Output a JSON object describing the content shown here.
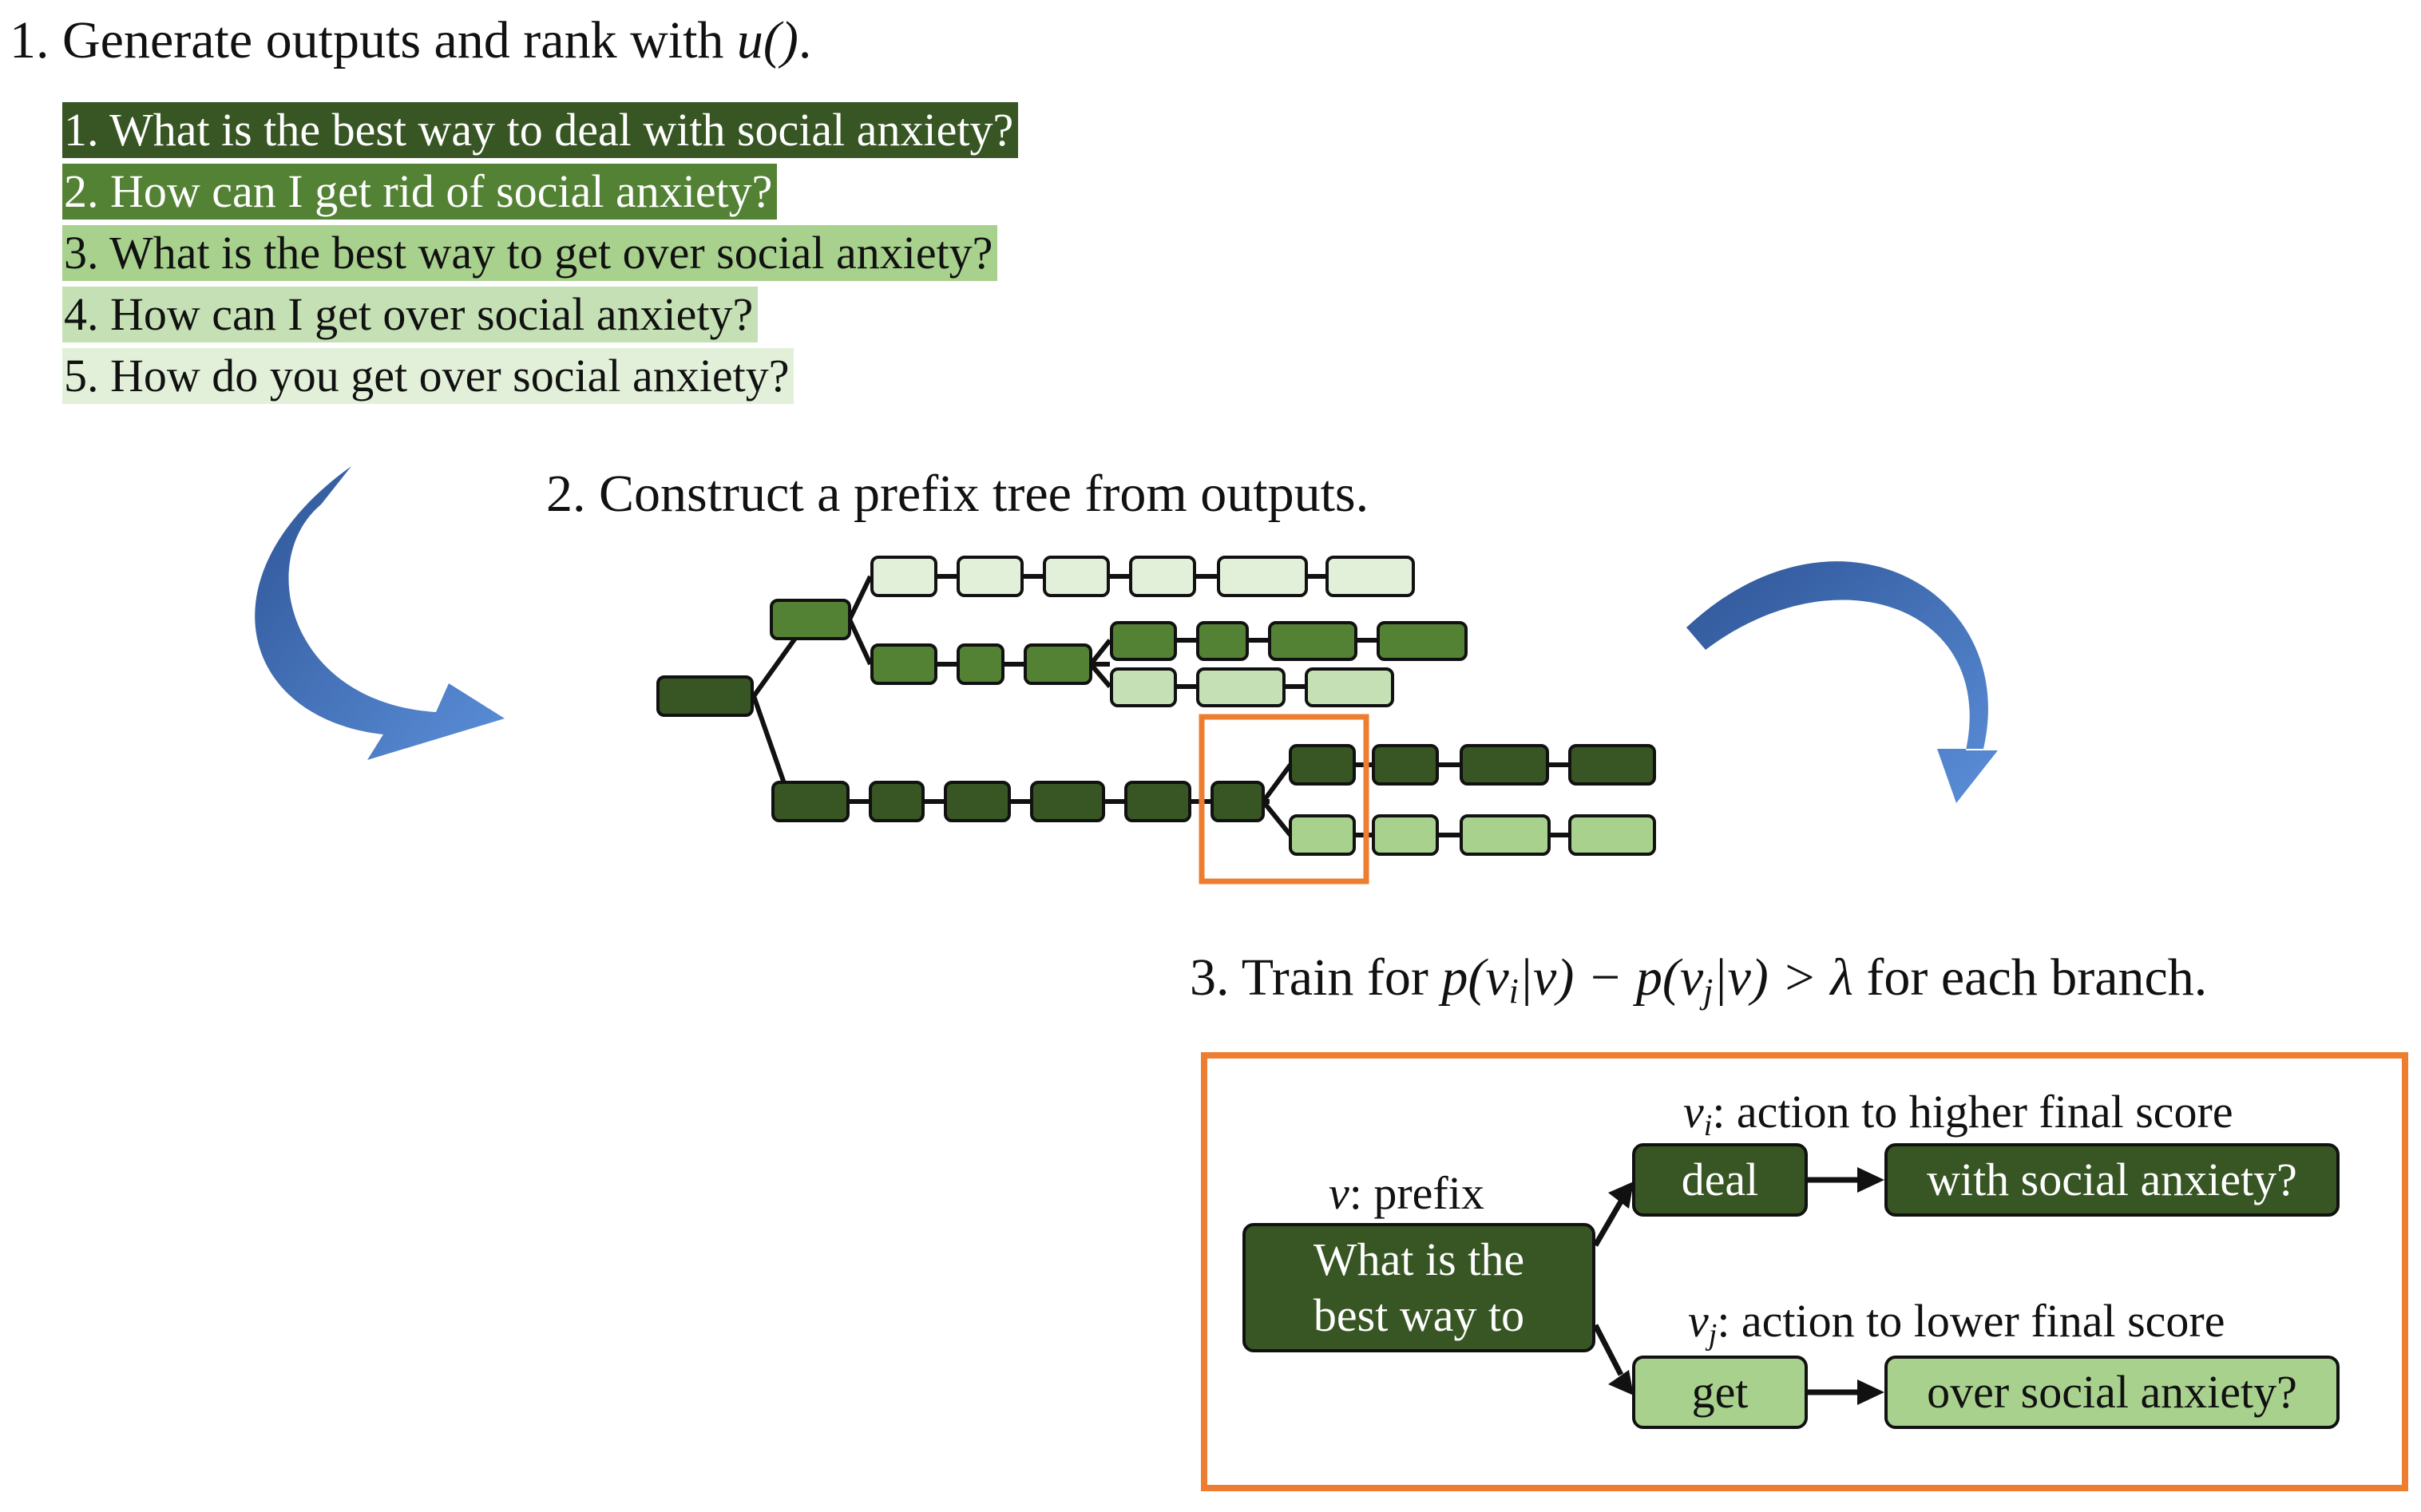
{
  "step1": {
    "prefix": "1. Generate outputs and rank with ",
    "math": "u()",
    "suffix": "."
  },
  "ranked_outputs": [
    {
      "text": "1. What is the best way to deal with social anxiety?",
      "bg": "#375623",
      "fg": "#ffffff"
    },
    {
      "text": "2. How can I get rid of social anxiety?",
      "bg": "#548235",
      "fg": "#ffffff"
    },
    {
      "text": "3. What is the best way to get over social anxiety?",
      "bg": "#a9d18e",
      "fg": "#111111"
    },
    {
      "text": "4. How can I get over social anxiety?",
      "bg": "#c5e0b4",
      "fg": "#111111"
    },
    {
      "text": "5. How do you get over social anxiety?",
      "bg": "#e2f0d9",
      "fg": "#111111"
    }
  ],
  "step2": {
    "text": "2. Construct a prefix tree from outputs."
  },
  "step3": {
    "prefix": "3. Train for ",
    "math_p1": "p(v",
    "sub_i": "i",
    "math_mid": "|v) − p(v",
    "sub_j": "j",
    "math_end": "|v) > λ",
    "suffix": " for each branch."
  },
  "detail": {
    "prefix_label_var": "v",
    "prefix_label_text": ": prefix",
    "prefix_node": "What is the best way to",
    "vi_var": "v",
    "vi_sub": "i",
    "vi_text": ": action to higher final score",
    "vj_var": "v",
    "vj_sub": "j",
    "vj_text": ": action to lower final score",
    "high_action": "deal",
    "high_continuation": "with social anxiety?",
    "low_action": "get",
    "low_continuation": "over social anxiety?"
  },
  "colors": {
    "rank1": "#375623",
    "rank2": "#548235",
    "rank3": "#a9d18e",
    "rank4": "#c5e0b4",
    "rank5": "#e2f0d9",
    "highlight_box": "#ed7d31",
    "arrow_blue": "#4472c4"
  }
}
